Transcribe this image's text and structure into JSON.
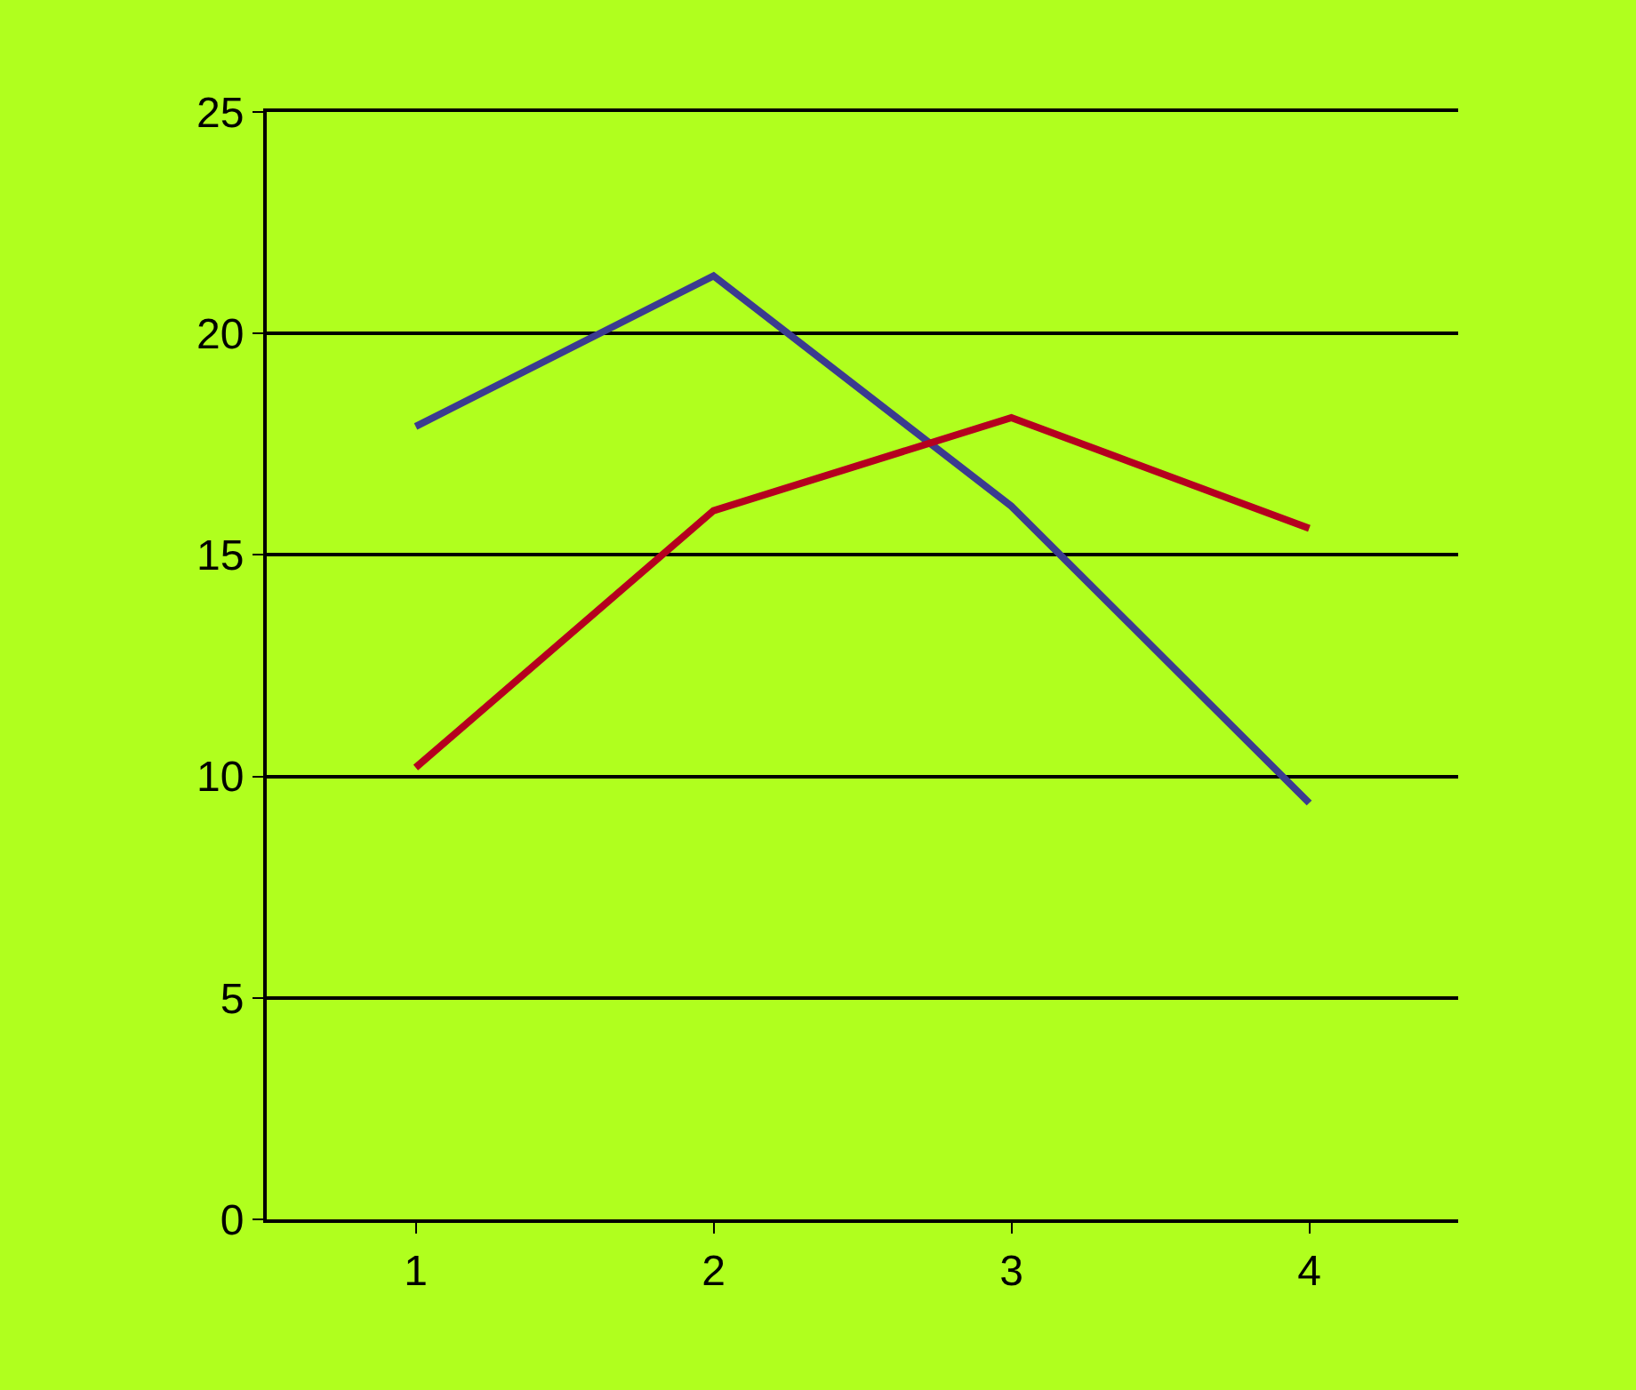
{
  "chart_data": {
    "type": "line",
    "categories": [
      "1",
      "2",
      "3",
      "4"
    ],
    "series": [
      {
        "color": "#3b3b8f",
        "values": [
          17.9,
          21.3,
          16.1,
          9.4
        ]
      },
      {
        "color": "#b5001f",
        "values": [
          10.2,
          16.0,
          18.1,
          15.6
        ]
      }
    ],
    "ylim": [
      0,
      25
    ],
    "yticks": [
      0,
      5,
      10,
      15,
      20,
      25
    ],
    "grid": "y",
    "marker": "none",
    "line_style": "solid"
  }
}
